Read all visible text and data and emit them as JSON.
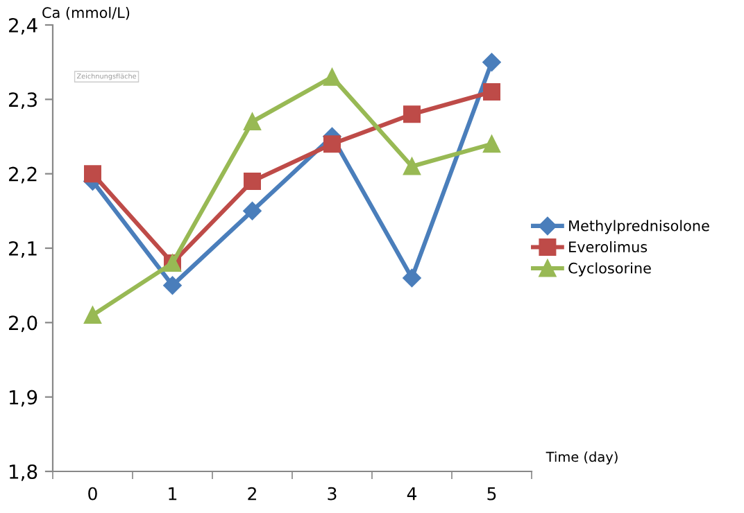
{
  "chart_data": {
    "type": "line",
    "ylabel": "Ca (mmol/L)",
    "xlabel": "Time (day)",
    "categories": [
      "0",
      "1",
      "2",
      "3",
      "4",
      "5"
    ],
    "series": [
      {
        "name": "Methylprednisolone",
        "color": "#4a7ebb",
        "marker": "diamond",
        "values": [
          2.19,
          2.05,
          2.15,
          2.25,
          2.06,
          2.35
        ]
      },
      {
        "name": "Everolimus",
        "color": "#be4b48",
        "marker": "square",
        "values": [
          2.2,
          2.08,
          2.19,
          2.24,
          2.28,
          2.31
        ]
      },
      {
        "name": "Cyclosorine",
        "color": "#98b954",
        "marker": "triangle",
        "values": [
          2.01,
          2.08,
          2.27,
          2.33,
          2.21,
          2.24
        ]
      }
    ],
    "ylim": [
      1.8,
      2.4
    ],
    "yticks": [
      {
        "value": 1.8,
        "label": "1,8"
      },
      {
        "value": 1.9,
        "label": "1,9"
      },
      {
        "value": 2.0,
        "label": "2,0"
      },
      {
        "value": 2.1,
        "label": "2,1"
      },
      {
        "value": 2.2,
        "label": "2,2"
      },
      {
        "value": 2.3,
        "label": "2,3"
      },
      {
        "value": 2.4,
        "label": "2,4"
      }
    ],
    "grid": false,
    "legend": "right",
    "line_style": "solid",
    "annotations": [
      "Zeichnungsfläche"
    ]
  }
}
